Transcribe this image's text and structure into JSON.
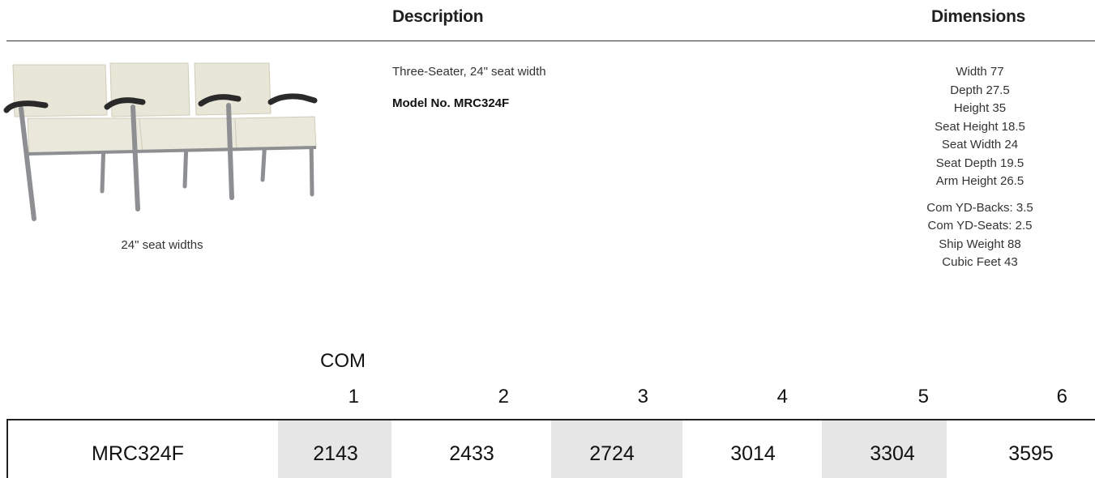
{
  "header": {
    "description_label": "Description",
    "dimensions_label": "Dimensions"
  },
  "product": {
    "image_caption": "24\" seat widths",
    "description": "Three-Seater, 24\" seat width",
    "model_line": "Model No. MRC324F"
  },
  "dimensions": {
    "main": [
      "Width 77",
      "Depth 27.5",
      "Height 35",
      "Seat Height 18.5",
      "Seat Width 24",
      "Seat Depth 19.5",
      "Arm Height 26.5"
    ],
    "extra": [
      "Com YD-Backs: 3.5",
      "Com YD-Seats: 2.5",
      "Ship Weight 88",
      "Cubic Feet 43"
    ]
  },
  "price_table": {
    "com_label": "COM",
    "columns": [
      "1",
      "2",
      "3",
      "4",
      "5",
      "6"
    ],
    "row": {
      "model": "MRC324F",
      "prices": [
        "2143",
        "2433",
        "2724",
        "3014",
        "3304",
        "3595"
      ]
    }
  },
  "colors": {
    "shaded_cell": "#e6e6e7",
    "seat_fabric": "#e8e6d6",
    "frame_metal": "#8d8f92",
    "arm_cap": "#2a2a2a"
  },
  "icons": {
    "product_image": "three-seat-chair-image"
  }
}
